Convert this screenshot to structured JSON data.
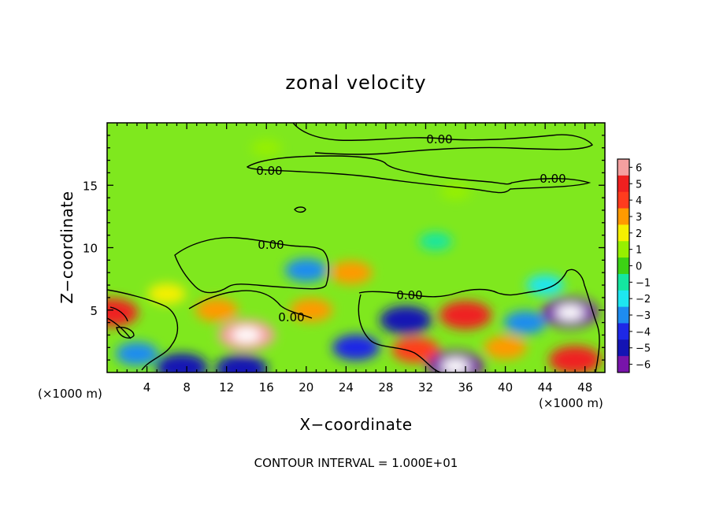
{
  "chart_data": {
    "type": "heatmap",
    "title": "zonal velocity",
    "xlabel": "X−coordinate",
    "ylabel": "Z−coordinate",
    "x_unit_left": "(×1000 m)",
    "x_unit_right": "(×1000 m)",
    "xlim": [
      0,
      50
    ],
    "ylim": [
      0,
      20
    ],
    "x_ticks": [
      4,
      8,
      12,
      16,
      20,
      24,
      28,
      32,
      36,
      40,
      44,
      48
    ],
    "y_ticks": [
      5,
      10,
      15
    ],
    "colorbar": {
      "range": [
        -6,
        6
      ],
      "tick_labels": [
        "6",
        "5",
        "4",
        "3",
        "2",
        "1",
        "0",
        "−1",
        "−2",
        "−3",
        "−4",
        "−5",
        "−6"
      ],
      "stops": [
        {
          "v": 6,
          "color": "#f4a0a0"
        },
        {
          "v": 5,
          "color": "#ef2020"
        },
        {
          "v": 4,
          "color": "#ff3c1e"
        },
        {
          "v": 3,
          "color": "#ff9a00"
        },
        {
          "v": 2,
          "color": "#f5f000"
        },
        {
          "v": 1,
          "color": "#96f000"
        },
        {
          "v": 0,
          "color": "#3cd214"
        },
        {
          "v": -1,
          "color": "#14e6a0"
        },
        {
          "v": -2,
          "color": "#1ee6f0"
        },
        {
          "v": -3,
          "color": "#1e8cf0"
        },
        {
          "v": -4,
          "color": "#1e28e6"
        },
        {
          "v": -5,
          "color": "#1414b4"
        },
        {
          "v": -6,
          "color": "#7814aa"
        }
      ]
    },
    "contour_labels": [
      "0.00",
      "0.00",
      "0.00",
      "0.00",
      "0.00",
      "0.00"
    ],
    "annotation": "CONTOUR INTERVAL = 1.000E+01",
    "features": [
      {
        "x": 0.5,
        "z": 4.8,
        "value": 5
      },
      {
        "x": 14,
        "z": 3.0,
        "value": 6
      },
      {
        "x": 20.5,
        "z": 5.0,
        "value": 3
      },
      {
        "x": 24.5,
        "z": 8.0,
        "value": 3
      },
      {
        "x": 20,
        "z": 8.2,
        "value": -3
      },
      {
        "x": 30,
        "z": 4.2,
        "value": -5
      },
      {
        "x": 31,
        "z": 1.8,
        "value": 4
      },
      {
        "x": 36,
        "z": 4.6,
        "value": 5
      },
      {
        "x": 35,
        "z": 0.5,
        "value": -6
      },
      {
        "x": 40,
        "z": 2.0,
        "value": 3
      },
      {
        "x": 46.5,
        "z": 4.8,
        "value": -6
      },
      {
        "x": 47,
        "z": 1.0,
        "value": 5
      },
      {
        "x": 13.5,
        "z": 0.3,
        "value": -5
      },
      {
        "x": 7.5,
        "z": 0.4,
        "value": -5
      },
      {
        "x": 25,
        "z": 2.0,
        "value": -4
      },
      {
        "x": 3,
        "z": 1.5,
        "value": -3
      },
      {
        "x": 42,
        "z": 4.0,
        "value": -3
      },
      {
        "x": 11,
        "z": 5.0,
        "value": 3
      },
      {
        "x": 6,
        "z": 6.3,
        "value": 2
      },
      {
        "x": 44,
        "z": 7.0,
        "value": -2
      },
      {
        "x": 33,
        "z": 10.5,
        "value": -1
      },
      {
        "x": 16,
        "z": 18,
        "value": 0.5
      },
      {
        "x": 35,
        "z": 14.5,
        "value": 0.5
      }
    ]
  }
}
